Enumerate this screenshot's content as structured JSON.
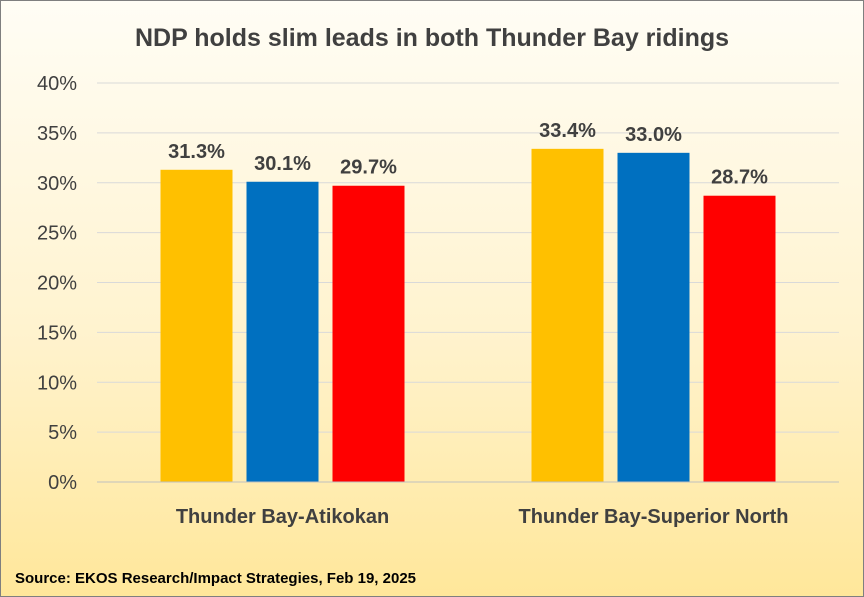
{
  "chart_data": {
    "type": "bar",
    "title": "NDP holds slim leads in both Thunder Bay ridings",
    "categories": [
      "Thunder Bay-Atikokan",
      "Thunder Bay-Superior North"
    ],
    "series": [
      {
        "color": "#ffc000",
        "values": [
          31.3,
          33.4
        ],
        "labels": [
          "31.3%",
          "33.4%"
        ]
      },
      {
        "color": "#0070c0",
        "values": [
          30.1,
          33.0
        ],
        "labels": [
          "30.1%",
          "33.0%"
        ]
      },
      {
        "color": "#ff0000",
        "values": [
          29.7,
          28.7
        ],
        "labels": [
          "29.7%",
          "28.7%"
        ]
      }
    ],
    "ylim": [
      0,
      40
    ],
    "yticks": [
      0,
      5,
      10,
      15,
      20,
      25,
      30,
      35,
      40
    ],
    "ytick_labels": [
      "0%",
      "5%",
      "10%",
      "15%",
      "20%",
      "25%",
      "30%",
      "35%",
      "40%"
    ],
    "grid": true,
    "legend": "none",
    "source": "Source: EKOS Research/Impact Strategies, Feb 19, 2025"
  }
}
